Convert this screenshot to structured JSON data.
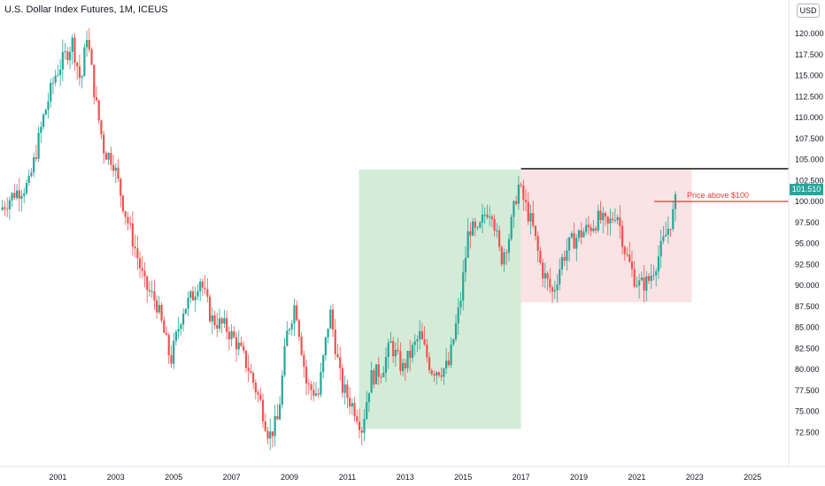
{
  "header": {
    "title": "U.S. Dollar Index Futures, 1M, ICEUS",
    "currency_button": "USD",
    "last_price": "101.510"
  },
  "annotation": {
    "text": "Price above $100"
  },
  "colors": {
    "up": "#26a69a",
    "down": "#ef5350",
    "green_zone": "#d4ecd7",
    "red_zone": "#f9e3e4",
    "resistance_line": "#000000",
    "annotation_line": "#e53935",
    "last_price_badge": "#26a69a"
  },
  "chart_data": {
    "type": "candlestick",
    "title": "U.S. Dollar Index Futures, 1M, ICEUS",
    "ylim": [
      68,
      125
    ],
    "y_ticks": [
      "72.500",
      "75.000",
      "77.500",
      "80.000",
      "82.500",
      "85.000",
      "87.500",
      "90.000",
      "92.500",
      "95.000",
      "97.500",
      "100.000",
      "102.500",
      "105.000",
      "107.500",
      "110.000",
      "112.500",
      "115.000",
      "117.500",
      "120.000"
    ],
    "x_ticks": [
      "2001",
      "2003",
      "2005",
      "2007",
      "2009",
      "2011",
      "2013",
      "2015",
      "2017",
      "2019",
      "2021",
      "2023",
      "2025"
    ],
    "grid": false,
    "close_path": [
      [
        1999.0,
        99.0
      ],
      [
        1999.5,
        101.0
      ],
      [
        2000.0,
        102.0
      ],
      [
        2000.5,
        110.0
      ],
      [
        2000.9,
        115.0
      ],
      [
        2001.2,
        117.0
      ],
      [
        2001.5,
        119.0
      ],
      [
        2001.8,
        114.0
      ],
      [
        2002.0,
        120.0
      ],
      [
        2002.3,
        112.0
      ],
      [
        2002.6,
        106.0
      ],
      [
        2002.9,
        105.0
      ],
      [
        2003.3,
        99.0
      ],
      [
        2003.7,
        94.0
      ],
      [
        2004.0,
        90.0
      ],
      [
        2004.4,
        88.0
      ],
      [
        2004.9,
        81.0
      ],
      [
        2005.3,
        87.0
      ],
      [
        2005.7,
        89.0
      ],
      [
        2005.9,
        91.0
      ],
      [
        2006.3,
        86.0
      ],
      [
        2006.8,
        85.0
      ],
      [
        2007.2,
        83.0
      ],
      [
        2007.6,
        80.0
      ],
      [
        2008.0,
        76.0
      ],
      [
        2008.3,
        72.0
      ],
      [
        2008.6,
        74.0
      ],
      [
        2008.9,
        84.0
      ],
      [
        2009.2,
        88.0
      ],
      [
        2009.6,
        78.0
      ],
      [
        2010.0,
        77.0
      ],
      [
        2010.4,
        87.0
      ],
      [
        2010.8,
        78.0
      ],
      [
        2011.3,
        75.0
      ],
      [
        2011.5,
        73.0
      ],
      [
        2011.8,
        79.0
      ],
      [
        2012.2,
        80.0
      ],
      [
        2012.5,
        83.0
      ],
      [
        2012.9,
        80.0
      ],
      [
        2013.2,
        82.0
      ],
      [
        2013.5,
        84.0
      ],
      [
        2013.9,
        80.0
      ],
      [
        2014.3,
        80.0
      ],
      [
        2014.5,
        80.5
      ],
      [
        2014.9,
        88.0
      ],
      [
        2015.2,
        97.0
      ],
      [
        2015.5,
        96.0
      ],
      [
        2015.8,
        99.0
      ],
      [
        2016.0,
        99.0
      ],
      [
        2016.3,
        93.0
      ],
      [
        2016.6,
        96.0
      ],
      [
        2016.9,
        102.0
      ],
      [
        2017.1,
        100.0
      ],
      [
        2017.4,
        97.0
      ],
      [
        2017.7,
        92.0
      ],
      [
        2018.1,
        89.0
      ],
      [
        2018.4,
        93.0
      ],
      [
        2018.7,
        95.0
      ],
      [
        2019.0,
        96.0
      ],
      [
        2019.4,
        97.0
      ],
      [
        2019.7,
        98.0
      ],
      [
        2020.0,
        97.0
      ],
      [
        2020.3,
        99.0
      ],
      [
        2020.6,
        94.0
      ],
      [
        2020.9,
        91.0
      ],
      [
        2021.1,
        90.0
      ],
      [
        2021.4,
        90.5
      ],
      [
        2021.7,
        93.0
      ],
      [
        2022.0,
        96.0
      ],
      [
        2022.3,
        99.0
      ],
      [
        2022.4,
        101.51
      ]
    ],
    "zones": [
      {
        "name": "green",
        "x_start": 2011.4,
        "x_end": 2017.0,
        "y_low": 72.9,
        "y_high": 103.8
      },
      {
        "name": "red",
        "x_start": 2017.0,
        "x_end": 2022.9,
        "y_low": 88.0,
        "y_high": 103.8
      }
    ],
    "resistance": {
      "y": 103.9,
      "x_start": 2017.0,
      "x_end": 2025.0
    },
    "annotation_line": {
      "y": 100.0,
      "x_start": 2021.6,
      "x_end": 2025.0
    },
    "last_value": 101.51
  }
}
